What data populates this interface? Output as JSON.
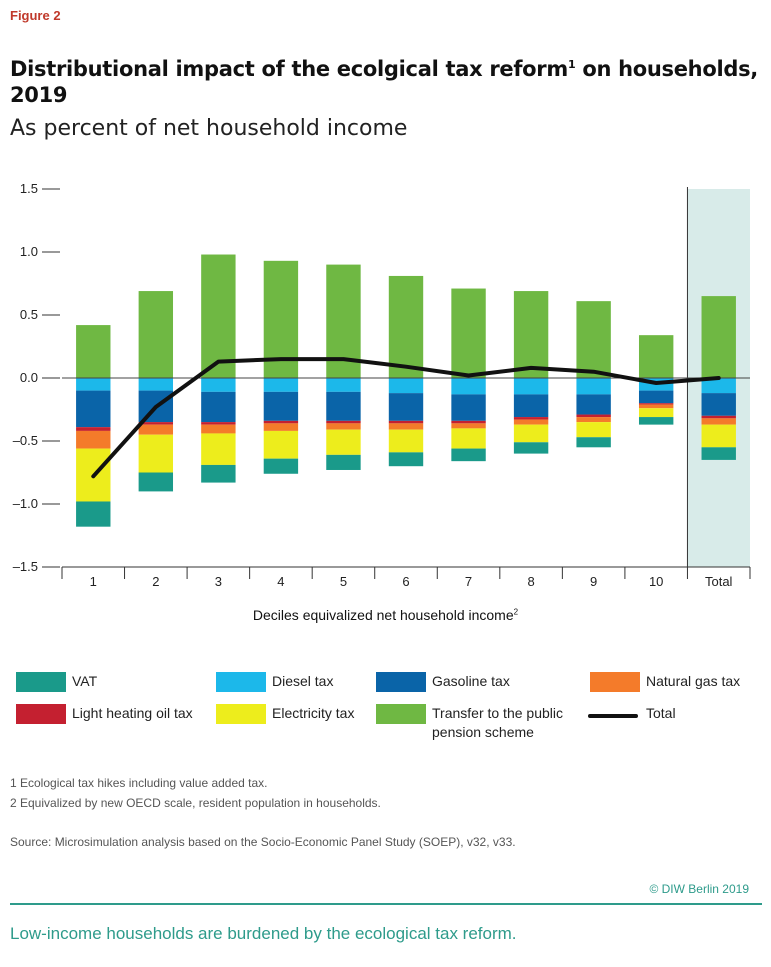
{
  "figure_label": "Figure 2",
  "title_main": "Distributional impact of the ecolgical tax reform",
  "title_sup": "1",
  "title_rest": " on households, 2019",
  "subtitle": "As percent of net household income",
  "xaxis_title": "Deciles equivalized net household income",
  "xaxis_title_sup": "2",
  "notes": [
    "1  Ecological tax hikes including value added tax.",
    "2  Equivalized by new OECD scale, resident population in households."
  ],
  "source": "Source: Microsimulation analysis based on the Socio-Economic Panel Study (SOEP), v32, v33.",
  "copyright": "© DIW Berlin 2019",
  "footer": "Low-income households are burdened by the ecological tax reform.",
  "legend": [
    {
      "label": "VAT",
      "color": "#1a9a8a"
    },
    {
      "label": "Diesel tax",
      "color": "#1cb8ea"
    },
    {
      "label": "Gasoline tax",
      "color": "#0a64a8"
    },
    {
      "label": "Natural gas tax",
      "color": "#f47b2a"
    },
    {
      "label": "Light heating oil tax",
      "color": "#c42030"
    },
    {
      "label": "Electricity tax",
      "color": "#eded1c"
    },
    {
      "label": "Transfer to the public\npension scheme",
      "color": "#6fb843"
    },
    {
      "label": "Total",
      "color": "#111111"
    }
  ],
  "chart_data": {
    "type": "bar",
    "stacked": true,
    "categories": [
      "1",
      "2",
      "3",
      "4",
      "5",
      "6",
      "7",
      "8",
      "9",
      "10",
      "Total"
    ],
    "ylim": [
      -1.5,
      1.5
    ],
    "yticks": [
      1.5,
      1.0,
      0.5,
      0.0,
      -0.5,
      -1.0,
      -1.5
    ],
    "ytick_labels": [
      "1.5",
      "1.0",
      "0.5",
      "0.0",
      "–0.5",
      "–1.0",
      "–1.5"
    ],
    "highlight_category": "Total",
    "highlight_color": "#d8ebe9",
    "series": [
      {
        "name": "Transfer to the public pension scheme",
        "color": "#6fb843",
        "values": [
          0.42,
          0.69,
          0.98,
          0.93,
          0.9,
          0.81,
          0.71,
          0.69,
          0.61,
          0.34,
          0.65
        ]
      },
      {
        "name": "Diesel tax",
        "color": "#1cb8ea",
        "values": [
          -0.1,
          -0.1,
          -0.11,
          -0.11,
          -0.11,
          -0.12,
          -0.13,
          -0.13,
          -0.13,
          -0.1,
          -0.12
        ]
      },
      {
        "name": "Gasoline tax",
        "color": "#0a64a8",
        "values": [
          -0.29,
          -0.25,
          -0.24,
          -0.23,
          -0.23,
          -0.22,
          -0.21,
          -0.18,
          -0.16,
          -0.1,
          -0.18
        ]
      },
      {
        "name": "Light heating oil tax",
        "color": "#c42030",
        "values": [
          -0.03,
          -0.02,
          -0.02,
          -0.02,
          -0.02,
          -0.02,
          -0.02,
          -0.02,
          -0.02,
          -0.01,
          -0.02
        ]
      },
      {
        "name": "Natural gas tax",
        "color": "#f47b2a",
        "values": [
          -0.14,
          -0.08,
          -0.07,
          -0.06,
          -0.05,
          -0.05,
          -0.04,
          -0.04,
          -0.04,
          -0.03,
          -0.05
        ]
      },
      {
        "name": "Electricity tax",
        "color": "#eded1c",
        "values": [
          -0.42,
          -0.3,
          -0.25,
          -0.22,
          -0.2,
          -0.18,
          -0.16,
          -0.14,
          -0.12,
          -0.07,
          -0.18
        ]
      },
      {
        "name": "VAT",
        "color": "#1a9a8a",
        "values": [
          -0.2,
          -0.15,
          -0.14,
          -0.12,
          -0.12,
          -0.11,
          -0.1,
          -0.09,
          -0.08,
          -0.06,
          -0.1
        ]
      }
    ],
    "total": {
      "name": "Total",
      "color": "#111111",
      "values": [
        -0.78,
        -0.23,
        0.13,
        0.15,
        0.15,
        0.09,
        0.02,
        0.08,
        0.05,
        -0.04,
        0.0
      ]
    }
  }
}
